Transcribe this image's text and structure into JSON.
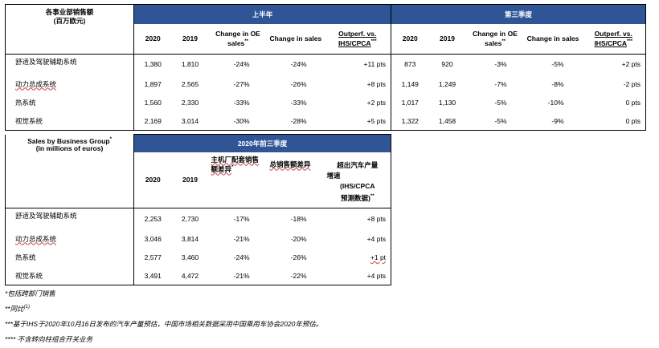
{
  "table1": {
    "corner_label_line1": "各事业部销售额",
    "corner_label_line2": "(百万欧元)",
    "h1_title": "上半年",
    "q3_title": "第三季度",
    "col_2020": "2020",
    "col_2019": "2019",
    "col_change_oe": "Change in OE sales",
    "col_change_oe_sup": "**",
    "col_change_sales": "Change in sales",
    "col_outperf": "Outperf. vs. IHS/CPCA",
    "col_outperf_sup": "***",
    "rows": [
      {
        "name": "舒适及驾驶辅助系统",
        "h1_2020": "1,380",
        "h1_2019": "1,810",
        "h1_oe": "-24%",
        "h1_sales": "-24%",
        "h1_out": "+11 pts",
        "q3_2020": "873",
        "q3_2019": "920",
        "q3_oe": "-3%",
        "q3_sales": "-5%",
        "q3_out": "+2 pts"
      },
      {
        "name": "动力总成系统",
        "h1_2020": "1,897",
        "h1_2019": "2,565",
        "h1_oe": "-27%",
        "h1_sales": "-26%",
        "h1_out": "+8 pts",
        "q3_2020": "1,149",
        "q3_2019": "1,249",
        "q3_oe": "-7%",
        "q3_sales": "-8%",
        "q3_out": "-2 pts"
      },
      {
        "name": "热系统",
        "h1_2020": "1,560",
        "h1_2019": "2,330",
        "h1_oe": "-33%",
        "h1_sales": "-33%",
        "h1_out": "+2 pts",
        "q3_2020": "1,017",
        "q3_2019": "1,130",
        "q3_oe": "-5%",
        "q3_sales": "-10%",
        "q3_out": "0 pts"
      },
      {
        "name": "视觉系统",
        "h1_2020": "2,169",
        "h1_2019": "3,014",
        "h1_oe": "-30%",
        "h1_sales": "-28%",
        "h1_out": "+5 pts",
        "q3_2020": "1,322",
        "q3_2019": "1,458",
        "q3_oe": "-5%",
        "q3_sales": "-9%",
        "q3_out": "0 pts"
      }
    ]
  },
  "table2": {
    "corner_label_line1": "Sales by Business Group",
    "corner_label_sup": "*",
    "corner_label_line2": "(in millions of euros)",
    "title": "2020年前三季度",
    "col_2020": "2020",
    "col_2019": "2019",
    "col_oe": "主机厂配套销售额差异",
    "col_oe_sup": "*",
    "col_sales": "总销售额差异",
    "col_out_line1": "超出汽车产量",
    "col_out_line2": "增速",
    "col_out_line3": "(IHS/CPCA",
    "col_out_line4": "预测数据)",
    "col_out_sup": "**",
    "rows": [
      {
        "name": "舒适及驾驶辅助系统",
        "v2020": "2,253",
        "v2019": "2,730",
        "oe": "-17%",
        "sales": "-18%",
        "out": "+8 pts"
      },
      {
        "name": "动力总成系统",
        "v2020": "3,046",
        "v2019": "3,814",
        "oe": "-21%",
        "sales": "-20%",
        "out": "+4 pts"
      },
      {
        "name": "热系统",
        "v2020": "2,577",
        "v2019": "3,460",
        "oe": "-24%",
        "sales": "-26%",
        "out": "+1 pt"
      },
      {
        "name": "视觉系统",
        "v2020": "3,491",
        "v2019": "4,472",
        "oe": "-21%",
        "sales": "-22%",
        "out": "+4 pts"
      }
    ]
  },
  "footnotes": {
    "n1": "*包括跨部门销售",
    "n2": "**同比",
    "n2_sup": "(1)",
    "n3": "***基于IHS于2020年10月16日发布的汽车产量预估，中国市场相关数据采用中国乘用车协会2020年预估。",
    "n4": "**** 不含转向柱组合开关业务"
  }
}
